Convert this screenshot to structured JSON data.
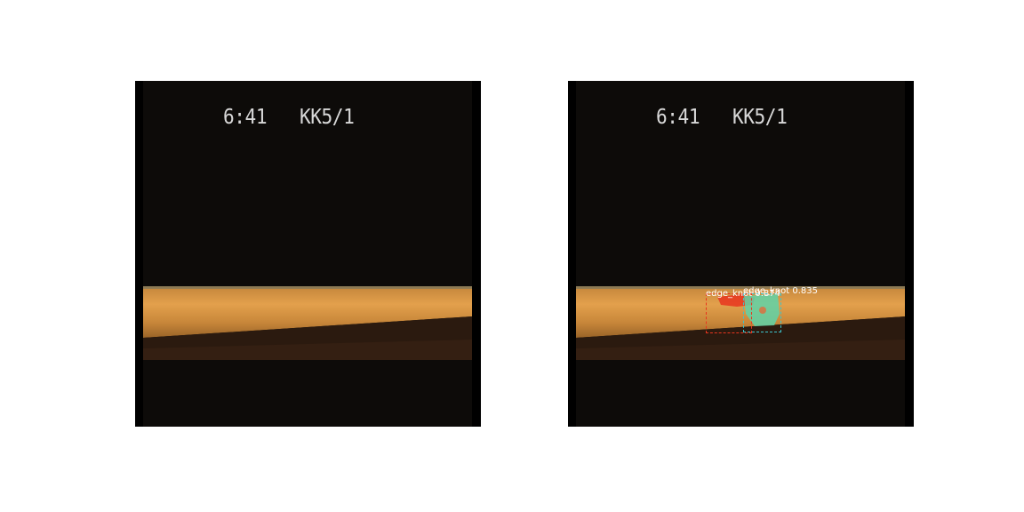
{
  "panels": [
    {
      "name": "original",
      "overlay_time": "6:41",
      "overlay_code": "KK5/1"
    },
    {
      "name": "prediction",
      "overlay_time": "6:41",
      "overlay_code": "KK5/1",
      "detections": [
        {
          "class_label": "edge_knot",
          "score": "0.874",
          "text": "edge_knot 0.874",
          "color": "#e8351e"
        },
        {
          "class_label": "edge_knot",
          "score": "0.835",
          "text": "edge_knot 0.835",
          "color": "#3cc4cc"
        }
      ]
    }
  ],
  "colors": {
    "background": "#0d0b09",
    "wood": "#d9913f",
    "knot_red": "#e8351e",
    "knot_cyan": "#3cc4cc",
    "mask_green": "#5fd4a8"
  }
}
